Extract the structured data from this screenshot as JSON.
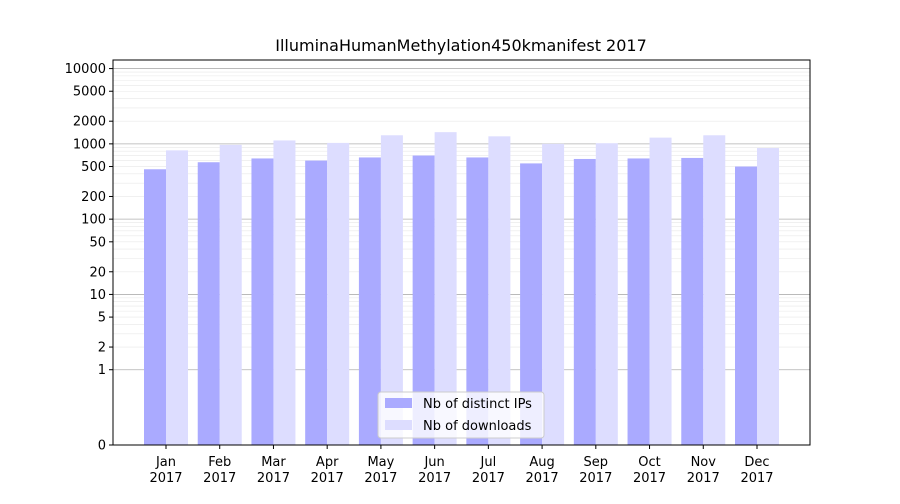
{
  "chart_data": {
    "type": "bar",
    "title": "IlluminaHumanMethylation450kmanifest 2017",
    "xlabel": "",
    "ylabel": "",
    "y_scale": "symlog",
    "ylim": [
      0,
      13000
    ],
    "grid": true,
    "legend_position": "bottom-center",
    "categories": [
      [
        "Jan",
        "2017"
      ],
      [
        "Feb",
        "2017"
      ],
      [
        "Mar",
        "2017"
      ],
      [
        "Apr",
        "2017"
      ],
      [
        "May",
        "2017"
      ],
      [
        "Jun",
        "2017"
      ],
      [
        "Jul",
        "2017"
      ],
      [
        "Aug",
        "2017"
      ],
      [
        "Sep",
        "2017"
      ],
      [
        "Oct",
        "2017"
      ],
      [
        "Nov",
        "2017"
      ],
      [
        "Dec",
        "2017"
      ]
    ],
    "y_ticks": [
      {
        "value": 0,
        "label": "0"
      },
      {
        "value": 1,
        "label": "1"
      },
      {
        "value": 2,
        "label": "2"
      },
      {
        "value": 5,
        "label": "5"
      },
      {
        "value": 10,
        "label": "10"
      },
      {
        "value": 20,
        "label": "20"
      },
      {
        "value": 50,
        "label": "50"
      },
      {
        "value": 100,
        "label": "100"
      },
      {
        "value": 200,
        "label": "200"
      },
      {
        "value": 500,
        "label": "500"
      },
      {
        "value": 1000,
        "label": "1000"
      },
      {
        "value": 2000,
        "label": "2000"
      },
      {
        "value": 5000,
        "label": "5000"
      },
      {
        "value": 10000,
        "label": "10000"
      }
    ],
    "series": [
      {
        "name": "Nb of distinct IPs",
        "color": "#aaaaff",
        "values": [
          460,
          570,
          640,
          600,
          660,
          700,
          660,
          550,
          630,
          640,
          650,
          500
        ]
      },
      {
        "name": "Nb of downloads",
        "color": "#ddddff",
        "values": [
          820,
          970,
          1110,
          1030,
          1300,
          1430,
          1260,
          1000,
          1020,
          1210,
          1300,
          880
        ]
      }
    ]
  }
}
